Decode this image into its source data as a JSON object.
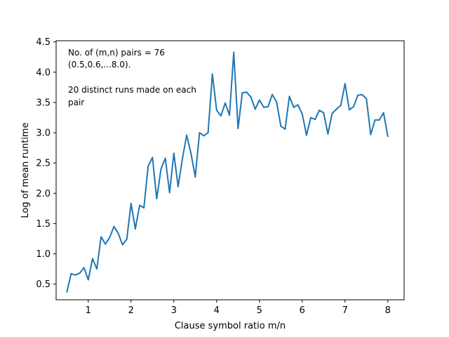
{
  "chart_data": {
    "type": "line",
    "xlabel": "Clause symbol ratio m/n",
    "ylabel": "Log of mean runtime",
    "xlim": [
      0.25,
      8.38
    ],
    "ylim": [
      0.24,
      4.52
    ],
    "xticks": [
      1,
      2,
      3,
      4,
      5,
      6,
      7,
      8
    ],
    "yticks": [
      0.5,
      1.0,
      1.5,
      2.0,
      2.5,
      3.0,
      3.5,
      4.0,
      4.5
    ],
    "xtick_labels": [
      "1",
      "2",
      "3",
      "4",
      "5",
      "6",
      "7",
      "8"
    ],
    "ytick_labels": [
      "0.5",
      "1.0",
      "1.5",
      "2.0",
      "2.5",
      "3.0",
      "3.5",
      "4.0",
      "4.5"
    ],
    "grid": false,
    "line_color": "#1f77b4",
    "annotations": [
      "No. of (m,n) pairs = 76",
      "(0.5,0.6,...8.0).",
      "20 distinct runs made on each",
      "pair"
    ],
    "series": [
      {
        "x": [
          0.5,
          0.6,
          0.7,
          0.8,
          0.9,
          1.0,
          1.1,
          1.2,
          1.3,
          1.4,
          1.5,
          1.6,
          1.7,
          1.8,
          1.9,
          2.0,
          2.1,
          2.2,
          2.3,
          2.4,
          2.5,
          2.6,
          2.7,
          2.8,
          2.9,
          3.0,
          3.1,
          3.2,
          3.3,
          3.4,
          3.5,
          3.6,
          3.7,
          3.8,
          3.9,
          4.0,
          4.1,
          4.2,
          4.3,
          4.4,
          4.5,
          4.6,
          4.7,
          4.8,
          4.9,
          5.0,
          5.1,
          5.2,
          5.3,
          5.4,
          5.5,
          5.6,
          5.7,
          5.8,
          5.9,
          6.0,
          6.1,
          6.2,
          6.3,
          6.4,
          6.5,
          6.6,
          6.7,
          6.8,
          6.9,
          7.0,
          7.1,
          7.2,
          7.3,
          7.4,
          7.5,
          7.6,
          7.7,
          7.8,
          7.9,
          8.0
        ],
        "values": [
          0.37,
          0.67,
          0.65,
          0.68,
          0.77,
          0.57,
          0.92,
          0.75,
          1.28,
          1.16,
          1.27,
          1.45,
          1.34,
          1.15,
          1.24,
          1.83,
          1.41,
          1.8,
          1.76,
          2.45,
          2.59,
          1.91,
          2.4,
          2.58,
          2.01,
          2.66,
          2.11,
          2.57,
          2.96,
          2.66,
          2.27,
          3.0,
          2.95,
          3.0,
          3.97,
          3.37,
          3.28,
          3.49,
          3.29,
          4.33,
          3.07,
          3.66,
          3.67,
          3.59,
          3.39,
          3.54,
          3.42,
          3.43,
          3.63,
          3.51,
          3.11,
          3.06,
          3.6,
          3.42,
          3.46,
          3.31,
          2.96,
          3.25,
          3.22,
          3.37,
          3.33,
          2.98,
          3.32,
          3.39,
          3.45,
          3.81,
          3.38,
          3.43,
          3.62,
          3.63,
          3.56,
          2.97,
          3.21,
          3.21,
          3.33,
          2.94
        ]
      }
    ]
  }
}
